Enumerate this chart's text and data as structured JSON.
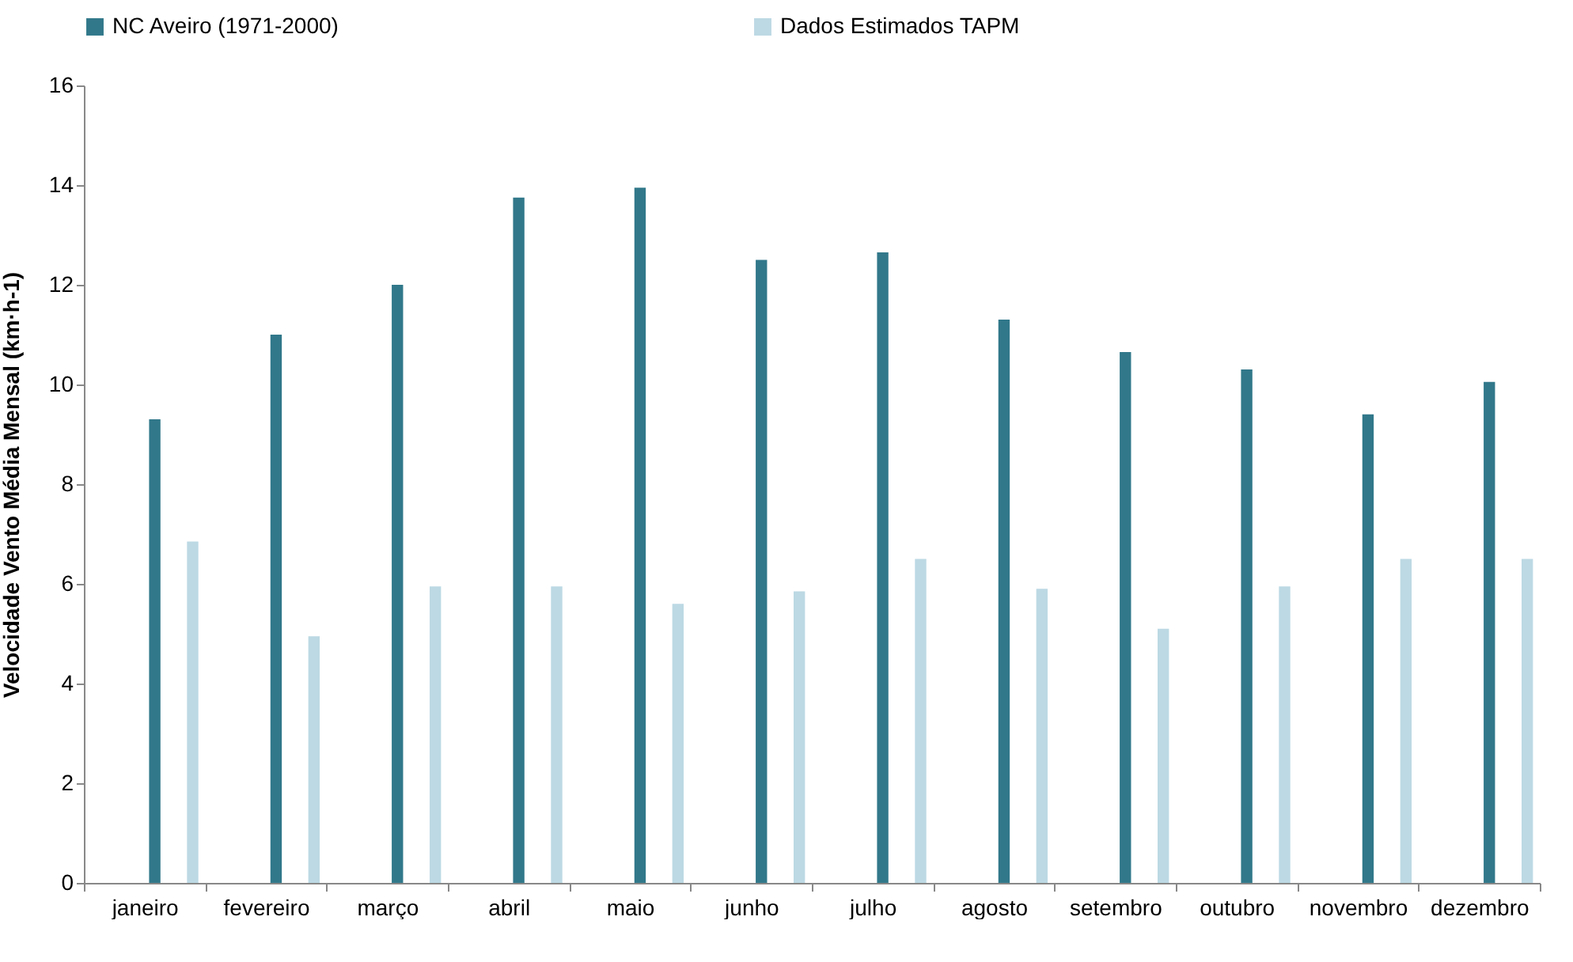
{
  "chart_data": {
    "type": "bar",
    "ylabel": "Velocidade Vento Média Mensal (km·h-1)",
    "categories": [
      "janeiro",
      "fevereiro",
      "março",
      "abril",
      "maio",
      "junho",
      "julho",
      "agosto",
      "setembro",
      "outubro",
      "novembro",
      "dezembro"
    ],
    "series": [
      {
        "name": "NC Aveiro (1971-2000)",
        "color": "#31788a",
        "values": [
          9.3,
          11.0,
          12.0,
          13.75,
          13.95,
          12.5,
          12.65,
          11.3,
          10.65,
          10.3,
          9.4,
          10.05
        ]
      },
      {
        "name": "Dados Estimados TAPM",
        "color": "#bcd9e4",
        "values": [
          6.85,
          4.95,
          5.95,
          5.95,
          5.6,
          5.85,
          6.5,
          5.9,
          5.1,
          5.95,
          6.5,
          6.5
        ]
      }
    ],
    "ylim": [
      0,
      16
    ],
    "yticks": [
      0,
      2,
      4,
      6,
      8,
      10,
      12,
      14,
      16
    ],
    "grid": false,
    "legend": "top"
  }
}
